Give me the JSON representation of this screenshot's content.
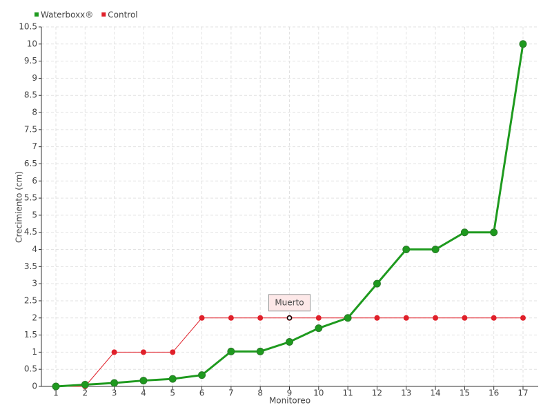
{
  "chart_data": {
    "type": "line",
    "x_label": "Monitoreo",
    "y_label": "Crecimiento (cm)",
    "categories": [
      "1",
      "2",
      "3",
      "4",
      "5",
      "6",
      "7",
      "8",
      "9",
      "10",
      "11",
      "12",
      "13",
      "14",
      "15",
      "16",
      "17"
    ],
    "series": [
      {
        "name": "Waterboxx®",
        "color": "#1e9a1e",
        "values": [
          0,
          0.05,
          0.1,
          0.17,
          0.22,
          0.33,
          1.02,
          1.02,
          1.3,
          1.7,
          2,
          3,
          4,
          4,
          4.5,
          4.5,
          10
        ]
      },
      {
        "name": "Control",
        "color": "#e0202a",
        "values": [
          0,
          0,
          1,
          1,
          1,
          2,
          2,
          2,
          2,
          2,
          2,
          2,
          2,
          2,
          2,
          2,
          2
        ]
      }
    ],
    "annotation": {
      "text": "Muerto",
      "category": "9"
    },
    "ylim": [
      0,
      10.5
    ],
    "yticks": [
      0,
      0.5,
      1,
      1.5,
      2,
      2.5,
      3,
      3.5,
      4,
      4.5,
      5,
      5.5,
      6,
      6.5,
      7,
      7.5,
      8,
      8.5,
      9,
      9.5,
      10,
      10.5
    ],
    "grid": true,
    "legend": "top-left"
  }
}
